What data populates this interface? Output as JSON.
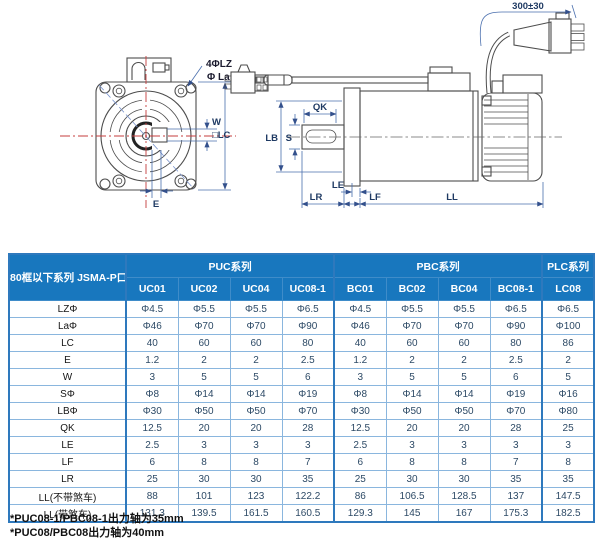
{
  "diagram": {
    "front": {
      "holes_label": "4ΦLZ",
      "boss_label": "Φ La",
      "key_width_label": "W",
      "frame_label": "□LC",
      "offset_label": "E"
    },
    "side": {
      "key_length_label": "QK",
      "pilot_label": "LB",
      "shaft_label": "S",
      "le_label": "LE",
      "lr_label": "LR",
      "lf_label": "LF",
      "ll_label": "LL",
      "cable_length_label": "300±30"
    }
  },
  "table": {
    "corner_header": [
      "80框以下系列",
      "JSMA-P口口口口"
    ],
    "groups": [
      {
        "label": "PUC系列",
        "span": 4
      },
      {
        "label": "PBC系列",
        "span": 4
      },
      {
        "label": "PLC系列",
        "span": 1
      }
    ],
    "columns": [
      "UC01",
      "UC02",
      "UC04",
      "UC08-1",
      "BC01",
      "BC02",
      "BC04",
      "BC08-1",
      "LC08"
    ],
    "rows": [
      {
        "label": "LZΦ",
        "values": [
          "Φ4.5",
          "Φ5.5",
          "Φ5.5",
          "Φ6.5",
          "Φ4.5",
          "Φ5.5",
          "Φ5.5",
          "Φ6.5",
          "Φ6.5"
        ]
      },
      {
        "label": "LaΦ",
        "values": [
          "Φ46",
          "Φ70",
          "Φ70",
          "Φ90",
          "Φ46",
          "Φ70",
          "Φ70",
          "Φ90",
          "Φ100"
        ]
      },
      {
        "label": "LC",
        "values": [
          "40",
          "60",
          "60",
          "80",
          "40",
          "60",
          "60",
          "80",
          "86"
        ]
      },
      {
        "label": "E",
        "values": [
          "1.2",
          "2",
          "2",
          "2.5",
          "1.2",
          "2",
          "2",
          "2.5",
          "2"
        ]
      },
      {
        "label": "W",
        "values": [
          "3",
          "5",
          "5",
          "6",
          "3",
          "5",
          "5",
          "6",
          "5"
        ]
      },
      {
        "label": "SΦ",
        "values": [
          "Φ8",
          "Φ14",
          "Φ14",
          "Φ19",
          "Φ8",
          "Φ14",
          "Φ14",
          "Φ19",
          "Φ16"
        ]
      },
      {
        "label": "LBΦ",
        "values": [
          "Φ30",
          "Φ50",
          "Φ50",
          "Φ70",
          "Φ30",
          "Φ50",
          "Φ50",
          "Φ70",
          "Φ80"
        ]
      },
      {
        "label": "QK",
        "values": [
          "12.5",
          "20",
          "20",
          "28",
          "12.5",
          "20",
          "20",
          "28",
          "25"
        ]
      },
      {
        "label": "LE",
        "values": [
          "2.5",
          "3",
          "3",
          "3",
          "2.5",
          "3",
          "3",
          "3",
          "3"
        ]
      },
      {
        "label": "LF",
        "values": [
          "6",
          "8",
          "8",
          "7",
          "6",
          "8",
          "8",
          "7",
          "8"
        ]
      },
      {
        "label": "LR",
        "values": [
          "25",
          "30",
          "30",
          "35",
          "25",
          "30",
          "30",
          "35",
          "35"
        ]
      },
      {
        "label": "LL(不带煞车)",
        "values": [
          "88",
          "101",
          "123",
          "122.2",
          "86",
          "106.5",
          "128.5",
          "137",
          "147.5"
        ]
      },
      {
        "label": "LL(带煞车)",
        "values": [
          "131.3",
          "139.5",
          "161.5",
          "160.5",
          "129.3",
          "145",
          "167",
          "175.3",
          "182.5"
        ]
      }
    ]
  },
  "footnotes": [
    "*PUC08-1/PBC08-1出力轴为35mm",
    "*PUC08/PBC08出力轴为40mm"
  ],
  "colors": {
    "header_bg": "#1877be",
    "grid": "#8ab6de",
    "outer": "#2e79bd",
    "cell_text": "#2d4a66",
    "dim_line": "#4a6fae",
    "dim_text": "#1f3a63",
    "centerline_red": "#c43c3c",
    "drawing_line": "#4d4d4d"
  }
}
